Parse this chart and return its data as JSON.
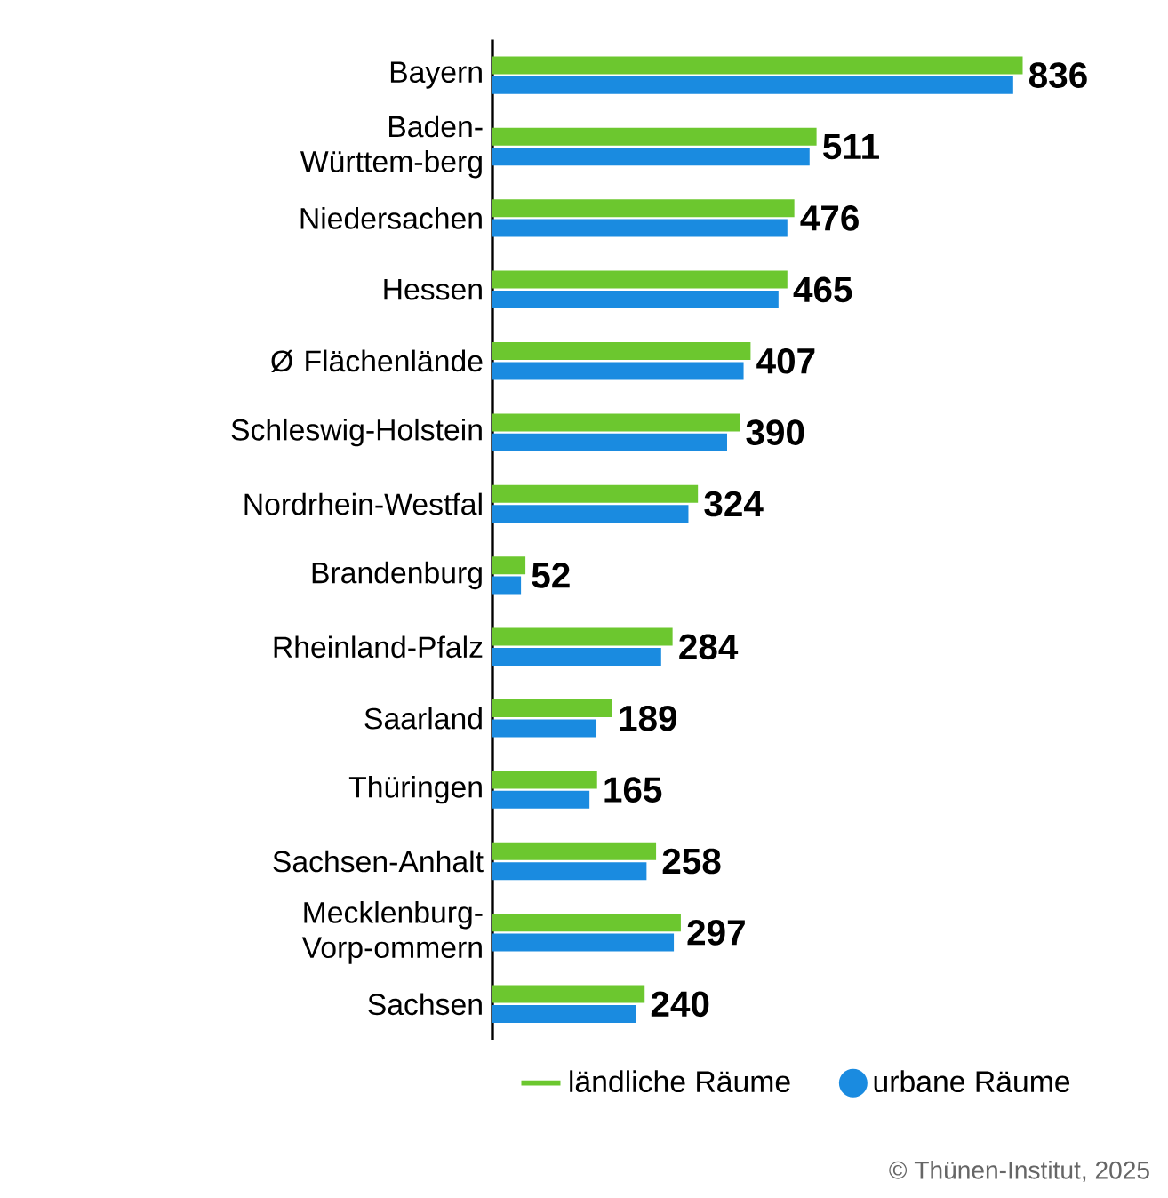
{
  "chart_data": {
    "type": "bar",
    "orientation": "horizontal",
    "categories": [
      "Bayern",
      "Baden-Württem-berg",
      "Niedersachen",
      "Hessen",
      "Ø Flächenlände",
      "Schleswig-Holstein",
      "Nordrhein-Westfal",
      "Brandenburg",
      "Rheinland-Pfalz",
      "Saarland",
      "Thüringen",
      "Sachsen-Anhalt",
      "Mecklenburg-Vorp-ommern",
      "Sachsen"
    ],
    "series": [
      {
        "name": "ländliche Räume",
        "color": "#6cc72f",
        "values": [
          836,
          511,
          476,
          465,
          407,
          390,
          324,
          52,
          284,
          189,
          165,
          258,
          297,
          240
        ],
        "value_labels": [
          "836",
          "511",
          "476",
          "465",
          "407",
          "390",
          "324",
          "52",
          "284",
          "189",
          "165",
          "258",
          "297",
          "240"
        ]
      },
      {
        "name": "urbane Räume",
        "color": "#1a8be0",
        "values": [
          821,
          500,
          465,
          451,
          396,
          370,
          309,
          45,
          266,
          164,
          153,
          243,
          286,
          226
        ]
      }
    ],
    "legend": "bottom",
    "annotations": [
      "© Thünen-Institut, 2025"
    ]
  }
}
